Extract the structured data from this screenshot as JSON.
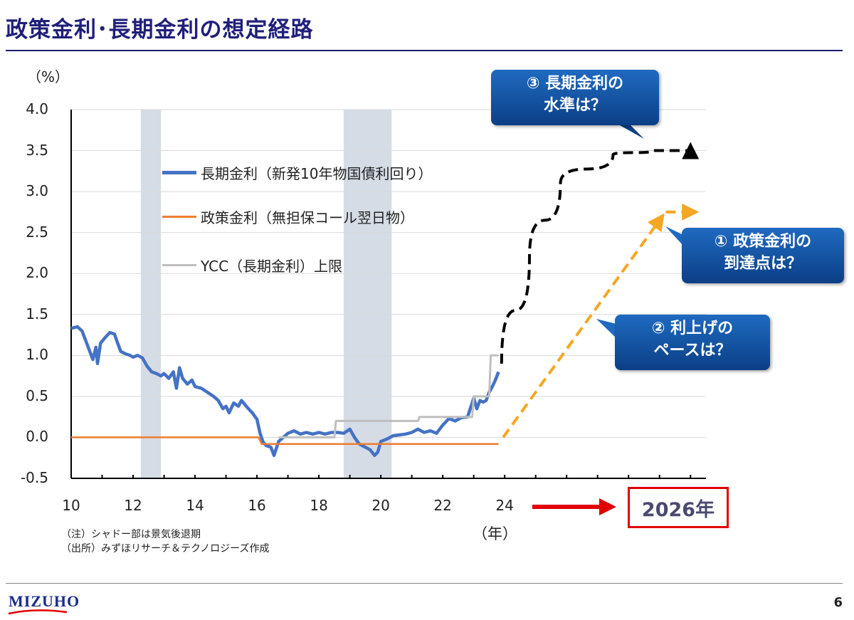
{
  "header": {
    "title": "政策金利･長期金利の想定経路"
  },
  "chart_data": {
    "type": "line",
    "title": "",
    "ylabel": "（%）",
    "xlabel": "（年）",
    "ylim": [
      -0.5,
      4.0
    ],
    "xlim": [
      2010,
      2030.5
    ],
    "y_ticks": [
      "4.0",
      "3.5",
      "3.0",
      "2.5",
      "2.0",
      "1.5",
      "1.0",
      "0.5",
      "0.0",
      "-0.5"
    ],
    "x_ticks": [
      "10",
      "12",
      "14",
      "16",
      "18",
      "20",
      "22",
      "24"
    ],
    "recessions": [
      [
        2012.25,
        2012.9
      ],
      [
        2018.8,
        2020.35
      ]
    ],
    "legend": [
      {
        "name": "長期金利（新発10年物国債利回り）",
        "color": "#4472c4"
      },
      {
        "name": "政策金利（無担保コール翌日物）",
        "color": "#ed7d31"
      },
      {
        "name": "YCC（長期金利）上限",
        "color": "#bfbfbf"
      }
    ],
    "series": [
      {
        "name": "長期金利（新発10年物国債利回り）",
        "color": "#4472c4",
        "points": [
          [
            2010.0,
            1.33
          ],
          [
            2010.2,
            1.35
          ],
          [
            2010.35,
            1.3
          ],
          [
            2010.5,
            1.15
          ],
          [
            2010.6,
            1.05
          ],
          [
            2010.7,
            0.95
          ],
          [
            2010.8,
            1.1
          ],
          [
            2010.85,
            0.9
          ],
          [
            2010.95,
            1.15
          ],
          [
            2011.1,
            1.22
          ],
          [
            2011.25,
            1.28
          ],
          [
            2011.4,
            1.26
          ],
          [
            2011.5,
            1.15
          ],
          [
            2011.6,
            1.05
          ],
          [
            2011.75,
            1.02
          ],
          [
            2011.9,
            1.0
          ],
          [
            2012.0,
            0.98
          ],
          [
            2012.15,
            1.0
          ],
          [
            2012.3,
            0.97
          ],
          [
            2012.45,
            0.87
          ],
          [
            2012.6,
            0.8
          ],
          [
            2012.75,
            0.78
          ],
          [
            2012.9,
            0.75
          ],
          [
            2013.0,
            0.78
          ],
          [
            2013.15,
            0.72
          ],
          [
            2013.3,
            0.8
          ],
          [
            2013.4,
            0.6
          ],
          [
            2013.5,
            0.85
          ],
          [
            2013.6,
            0.72
          ],
          [
            2013.75,
            0.65
          ],
          [
            2013.9,
            0.7
          ],
          [
            2014.0,
            0.62
          ],
          [
            2014.2,
            0.6
          ],
          [
            2014.4,
            0.55
          ],
          [
            2014.6,
            0.5
          ],
          [
            2014.75,
            0.45
          ],
          [
            2014.9,
            0.35
          ],
          [
            2015.0,
            0.38
          ],
          [
            2015.1,
            0.3
          ],
          [
            2015.25,
            0.42
          ],
          [
            2015.4,
            0.38
          ],
          [
            2015.5,
            0.45
          ],
          [
            2015.7,
            0.36
          ],
          [
            2015.85,
            0.3
          ],
          [
            2016.0,
            0.22
          ],
          [
            2016.1,
            0.05
          ],
          [
            2016.2,
            -0.06
          ],
          [
            2016.3,
            -0.1
          ],
          [
            2016.45,
            -0.12
          ],
          [
            2016.55,
            -0.22
          ],
          [
            2016.7,
            -0.05
          ],
          [
            2016.85,
            0.0
          ],
          [
            2017.0,
            0.05
          ],
          [
            2017.2,
            0.08
          ],
          [
            2017.4,
            0.04
          ],
          [
            2017.6,
            0.06
          ],
          [
            2017.8,
            0.04
          ],
          [
            2018.0,
            0.06
          ],
          [
            2018.2,
            0.04
          ],
          [
            2018.4,
            0.06
          ],
          [
            2018.6,
            0.06
          ],
          [
            2018.8,
            0.05
          ],
          [
            2019.0,
            0.1
          ],
          [
            2019.15,
            0.0
          ],
          [
            2019.3,
            -0.08
          ],
          [
            2019.5,
            -0.12
          ],
          [
            2019.65,
            -0.15
          ],
          [
            2019.8,
            -0.22
          ],
          [
            2019.9,
            -0.18
          ],
          [
            2020.0,
            -0.05
          ],
          [
            2020.2,
            -0.02
          ],
          [
            2020.4,
            0.02
          ],
          [
            2020.6,
            0.03
          ],
          [
            2020.8,
            0.04
          ],
          [
            2021.0,
            0.06
          ],
          [
            2021.2,
            0.1
          ],
          [
            2021.4,
            0.06
          ],
          [
            2021.6,
            0.08
          ],
          [
            2021.8,
            0.05
          ],
          [
            2022.0,
            0.15
          ],
          [
            2022.2,
            0.23
          ],
          [
            2022.4,
            0.2
          ],
          [
            2022.6,
            0.24
          ],
          [
            2022.8,
            0.25
          ],
          [
            2023.0,
            0.48
          ],
          [
            2023.1,
            0.35
          ],
          [
            2023.2,
            0.45
          ],
          [
            2023.3,
            0.43
          ],
          [
            2023.4,
            0.45
          ],
          [
            2023.5,
            0.55
          ],
          [
            2023.6,
            0.62
          ],
          [
            2023.7,
            0.7
          ],
          [
            2023.8,
            0.8
          ]
        ]
      },
      {
        "name": "政策金利（無担保コール翌日物）",
        "color": "#ed7d31",
        "points": [
          [
            2010.0,
            0.0
          ],
          [
            2016.05,
            0.0
          ],
          [
            2016.15,
            -0.08
          ],
          [
            2023.8,
            -0.08
          ]
        ]
      },
      {
        "name": "YCC（長期金利）上限",
        "color": "#bfbfbf",
        "points": [
          [
            2016.7,
            0.0
          ],
          [
            2018.5,
            0.0
          ],
          [
            2018.55,
            0.2
          ],
          [
            2021.2,
            0.2
          ],
          [
            2021.25,
            0.25
          ],
          [
            2022.95,
            0.25
          ],
          [
            2023.0,
            0.5
          ],
          [
            2023.5,
            0.5
          ],
          [
            2023.55,
            1.0
          ],
          [
            2023.8,
            1.0
          ]
        ]
      }
    ],
    "projections": [
      {
        "name": "長期金利想定経路",
        "color": "#000000",
        "points": [
          [
            2023.9,
            0.9
          ],
          [
            2024.8,
            2.2
          ],
          [
            2025.8,
            3.1
          ],
          [
            2027.5,
            3.45
          ],
          [
            2028.8,
            3.5
          ],
          [
            2030.0,
            3.5
          ]
        ]
      },
      {
        "name": "政策金利想定経路",
        "color": "#f5a623",
        "points": [
          [
            2023.95,
            0.0
          ],
          [
            2029.0,
            2.65
          ]
        ]
      },
      {
        "name": "政策金利想定経路（横ばい）",
        "color": "#f5a623",
        "points": [
          [
            2029.2,
            2.75
          ],
          [
            2030.0,
            2.75
          ]
        ]
      }
    ]
  },
  "legend_labels": {
    "long": "長期金利（新発10年物国債利回り）",
    "policy": "政策金利（無担保コール翌日物）",
    "ycc": "YCC（長期金利）上限"
  },
  "callouts": {
    "c3_line1": "③ 長期金利の",
    "c3_line2": "水準は？",
    "c1_line1": "① 政策金利の",
    "c1_line2": "到達点は？",
    "c2_line1": "② 利上げの",
    "c2_line2": "ペースは？"
  },
  "target_year": "2026年",
  "notes": {
    "note1": "（注）シャドー部は景気後退期",
    "note2": "（出所）みずほリサーチ＆テクノロジーズ作成"
  },
  "footer": {
    "logo": "MIZUHO",
    "page": "6"
  }
}
